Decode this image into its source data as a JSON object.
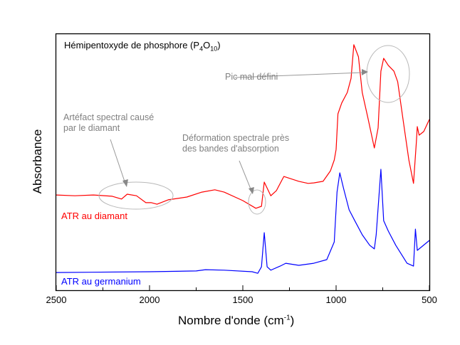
{
  "chart_data": {
    "type": "line",
    "title": {
      "text": "Hémipentoxyde de phosphore (P",
      "sub1": "4",
      "mid": "O",
      "sub2": "10",
      "end": ")"
    },
    "xlabel": {
      "text": "Nombre d'onde (cm",
      "sup": "-1",
      "end": ")"
    },
    "ylabel": "Absorbance",
    "xlim": [
      2500,
      500
    ],
    "x_reversed": true,
    "ylim": [
      0,
      1
    ],
    "y_ticks_shown": false,
    "grid": false,
    "xticks": [
      "2500",
      "2000",
      "1500",
      "1000",
      "500"
    ],
    "series": [
      {
        "name": "ATR au diamant",
        "color": "#ff0000",
        "x": [
          2500,
          2400,
          2300,
          2200,
          2150,
          2120,
          2070,
          2020,
          1990,
          1960,
          1900,
          1800,
          1720,
          1650,
          1600,
          1500,
          1430,
          1400,
          1385,
          1350,
          1320,
          1280,
          1200,
          1150,
          1120,
          1070,
          1030,
          1010,
          1000,
          990,
          970,
          940,
          920,
          905,
          880,
          860,
          830,
          795,
          775,
          760,
          745,
          720,
          690,
          670,
          640,
          610,
          585,
          570,
          565,
          555,
          530,
          500
        ],
        "y": [
          0.371,
          0.368,
          0.371,
          0.366,
          0.355,
          0.374,
          0.368,
          0.341,
          0.341,
          0.335,
          0.352,
          0.363,
          0.382,
          0.391,
          0.382,
          0.349,
          0.319,
          0.327,
          0.421,
          0.368,
          0.388,
          0.443,
          0.424,
          0.416,
          0.418,
          0.424,
          0.465,
          0.507,
          0.548,
          0.687,
          0.729,
          0.77,
          0.825,
          0.956,
          0.909,
          0.77,
          0.673,
          0.554,
          0.632,
          0.853,
          0.903,
          0.875,
          0.853,
          0.812,
          0.659,
          0.507,
          0.416,
          0.576,
          0.637,
          0.604,
          0.618,
          0.665
        ]
      },
      {
        "name": "ATR au germanium",
        "color": "#0000ff",
        "x": [
          2500,
          2000,
          1750,
          1700,
          1600,
          1450,
          1420,
          1400,
          1385,
          1370,
          1350,
          1300,
          1270,
          1200,
          1120,
          1050,
          1010,
          995,
          980,
          960,
          930,
          900,
          860,
          820,
          795,
          785,
          760,
          745,
          720,
          680,
          620,
          585,
          575,
          565,
          500
        ],
        "y": [
          0.069,
          0.072,
          0.075,
          0.08,
          0.078,
          0.072,
          0.066,
          0.091,
          0.224,
          0.091,
          0.078,
          0.094,
          0.105,
          0.097,
          0.105,
          0.119,
          0.188,
          0.382,
          0.457,
          0.396,
          0.313,
          0.271,
          0.216,
          0.175,
          0.161,
          0.216,
          0.471,
          0.271,
          0.23,
          0.175,
          0.105,
          0.094,
          0.238,
          0.155,
          0.194
        ]
      }
    ],
    "annotations": [
      {
        "line1": "Artéfact spectral causé",
        "line2": "par le diamant"
      },
      {
        "line1": "Déformation spectrale près",
        "line2": "des bandes d'absorption"
      },
      {
        "line1": "Pic mal défini"
      }
    ]
  }
}
